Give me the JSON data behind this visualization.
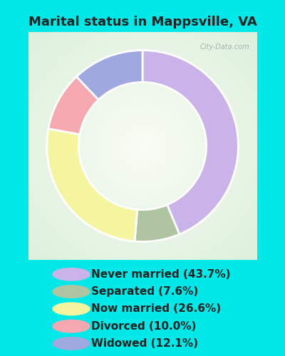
{
  "title": "Marital status in Mappsville, VA",
  "categories": [
    "Never married",
    "Separated",
    "Now married",
    "Divorced",
    "Widowed"
  ],
  "values": [
    43.7,
    7.6,
    26.6,
    10.0,
    12.1
  ],
  "colors": [
    "#c9b3e8",
    "#afc4a0",
    "#f5f5a0",
    "#f5a8b0",
    "#a0a8e0"
  ],
  "background_cyan": "#00e8e8",
  "background_chart": "#d8ede0",
  "donut_width": 0.35,
  "legend_labels": [
    "Never married (43.7%)",
    "Separated (7.6%)",
    "Now married (26.6%)",
    "Divorced (10.0%)",
    "Widowed (12.1%)"
  ],
  "watermark": "City-Data.com",
  "title_fontsize": 13,
  "legend_fontsize": 11,
  "title_color": "#222222"
}
